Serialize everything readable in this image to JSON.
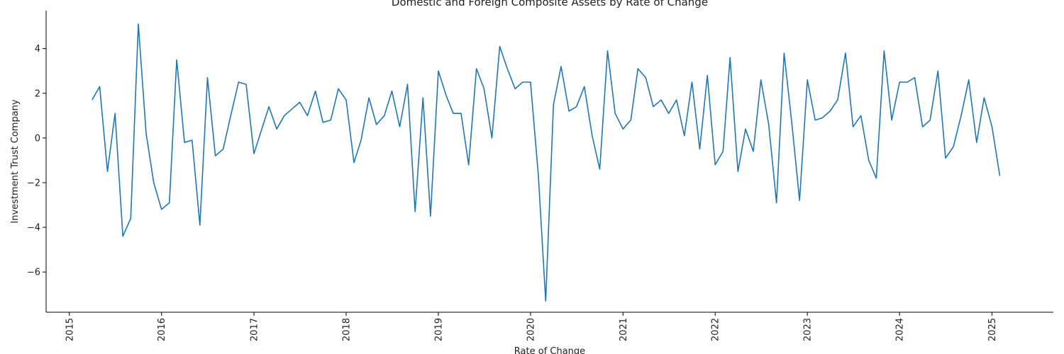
{
  "chart_data": {
    "type": "line",
    "title": "Domestic and Foreign Composite Assets by Rate of Change",
    "xlabel": "Rate of Change",
    "ylabel": "Investment Trust Company",
    "xlim": [
      "2014-10-01",
      "2025-09-01"
    ],
    "ylim": [
      -7.8,
      5.7
    ],
    "x_ticks": [
      "2015",
      "2016",
      "2017",
      "2018",
      "2019",
      "2020",
      "2021",
      "2022",
      "2023",
      "2024",
      "2025"
    ],
    "y_ticks": [
      -6,
      -4,
      -2,
      0,
      2,
      4
    ],
    "y_tick_labels": [
      "−6",
      "−4",
      "−2",
      "0",
      "2",
      "4"
    ],
    "grid": false,
    "line_color": "#1f77b4",
    "x": [
      "2015-04",
      "2015-05",
      "2015-06",
      "2015-07",
      "2015-08",
      "2015-09",
      "2015-10",
      "2015-11",
      "2015-12",
      "2016-01",
      "2016-02",
      "2016-03",
      "2016-04",
      "2016-05",
      "2016-06",
      "2016-07",
      "2016-08",
      "2016-09",
      "2016-10",
      "2016-11",
      "2016-12",
      "2017-01",
      "2017-02",
      "2017-03",
      "2017-04",
      "2017-05",
      "2017-06",
      "2017-07",
      "2017-08",
      "2017-09",
      "2017-10",
      "2017-11",
      "2017-12",
      "2018-01",
      "2018-02",
      "2018-03",
      "2018-04",
      "2018-05",
      "2018-06",
      "2018-07",
      "2018-08",
      "2018-09",
      "2018-10",
      "2018-11",
      "2018-12",
      "2019-01",
      "2019-02",
      "2019-03",
      "2019-04",
      "2019-05",
      "2019-06",
      "2019-07",
      "2019-08",
      "2019-09",
      "2019-10",
      "2019-11",
      "2019-12",
      "2020-01",
      "2020-02",
      "2020-03",
      "2020-04",
      "2020-05",
      "2020-06",
      "2020-07",
      "2020-08",
      "2020-09",
      "2020-10",
      "2020-11",
      "2020-12",
      "2021-01",
      "2021-02",
      "2021-03",
      "2021-04",
      "2021-05",
      "2021-06",
      "2021-07",
      "2021-08",
      "2021-09",
      "2021-10",
      "2021-11",
      "2021-12",
      "2022-01",
      "2022-02",
      "2022-03",
      "2022-04",
      "2022-05",
      "2022-06",
      "2022-07",
      "2022-08",
      "2022-09",
      "2022-10",
      "2022-11",
      "2022-12",
      "2023-01",
      "2023-02",
      "2023-03",
      "2023-04",
      "2023-05",
      "2023-06",
      "2023-07",
      "2023-08",
      "2023-09",
      "2023-10",
      "2023-11",
      "2023-12",
      "2024-01",
      "2024-02",
      "2024-03",
      "2024-04",
      "2024-05",
      "2024-06",
      "2024-07",
      "2024-08",
      "2024-09",
      "2024-10",
      "2024-11",
      "2024-12",
      "2025-01",
      "2025-02"
    ],
    "series": [
      {
        "values": [
          1.7,
          2.3,
          -1.5,
          1.1,
          -4.4,
          -3.6,
          5.1,
          0.2,
          -2.0,
          -3.2,
          -2.9,
          3.5,
          -0.2,
          -0.1,
          -3.9,
          2.7,
          -0.8,
          -0.5,
          1.0,
          2.5,
          2.4,
          -0.7,
          0.4,
          1.4,
          0.4,
          1.0,
          1.3,
          1.6,
          1.0,
          2.1,
          0.7,
          0.8,
          2.2,
          1.7,
          -1.1,
          -0.1,
          1.8,
          0.6,
          1.0,
          2.1,
          0.5,
          2.4,
          -3.3,
          1.8,
          -3.5,
          3.0,
          1.9,
          1.1,
          1.1,
          -1.2,
          3.1,
          2.2,
          0.0,
          4.1,
          3.1,
          2.2,
          2.5,
          2.5,
          -1.7,
          -7.3,
          1.5,
          3.2,
          1.2,
          1.4,
          2.3,
          0.1,
          -1.4,
          3.9,
          1.1,
          0.4,
          0.8,
          3.1,
          2.7,
          1.4,
          1.7,
          1.1,
          1.7,
          0.1,
          2.5,
          -0.5,
          2.8,
          -1.2,
          -0.6,
          3.6,
          -1.5,
          0.4,
          -0.6,
          2.6,
          0.6,
          -2.9,
          3.8,
          0.6,
          -2.8,
          2.6,
          0.8,
          0.9,
          1.2,
          1.7,
          3.8,
          0.5,
          1.0,
          -1.0,
          -1.8,
          3.9,
          0.8,
          2.5,
          2.5,
          2.7,
          0.5,
          0.8,
          3.0,
          -0.9,
          -0.4,
          1.0,
          2.6,
          -0.2,
          1.8,
          0.5,
          -1.7
        ]
      }
    ]
  }
}
